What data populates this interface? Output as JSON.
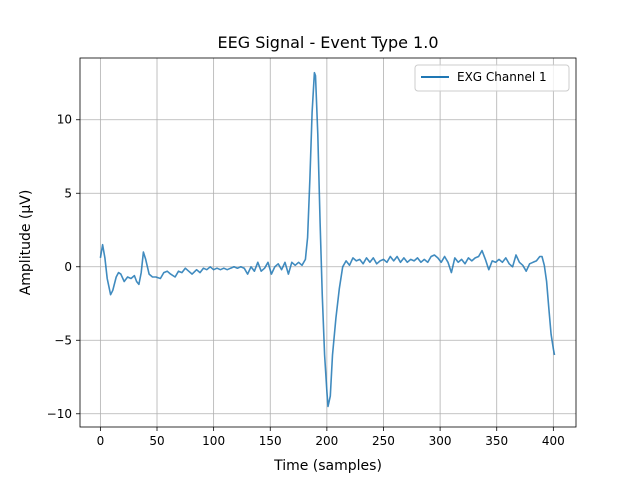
{
  "chart_data": {
    "type": "line",
    "title": "EEG Signal - Event Type 1.0",
    "xlabel": "Time (samples)",
    "ylabel": "Amplitude (µV)",
    "xlim": [
      -18,
      420
    ],
    "ylim": [
      -10.9,
      14.2
    ],
    "xticks": [
      0,
      50,
      100,
      150,
      200,
      250,
      300,
      350,
      400
    ],
    "yticks": [
      -10,
      -5,
      0,
      5,
      10
    ],
    "grid": true,
    "legend": "top-right",
    "series": [
      {
        "name": "EXG Channel 1",
        "color": "#1f77b4",
        "points": [
          [
            0,
            0.6
          ],
          [
            2,
            1.5
          ],
          [
            4,
            0.6
          ],
          [
            6,
            -0.8
          ],
          [
            9,
            -1.9
          ],
          [
            11,
            -1.6
          ],
          [
            14,
            -0.7
          ],
          [
            16,
            -0.4
          ],
          [
            18,
            -0.5
          ],
          [
            21,
            -1.0
          ],
          [
            24,
            -0.7
          ],
          [
            27,
            -0.8
          ],
          [
            30,
            -0.6
          ],
          [
            32,
            -1.0
          ],
          [
            34,
            -1.2
          ],
          [
            36,
            -0.4
          ],
          [
            38,
            1.0
          ],
          [
            40,
            0.5
          ],
          [
            43,
            -0.5
          ],
          [
            46,
            -0.7
          ],
          [
            49,
            -0.7
          ],
          [
            53,
            -0.8
          ],
          [
            56,
            -0.4
          ],
          [
            59,
            -0.3
          ],
          [
            62,
            -0.5
          ],
          [
            66,
            -0.7
          ],
          [
            69,
            -0.3
          ],
          [
            72,
            -0.4
          ],
          [
            75,
            -0.1
          ],
          [
            78,
            -0.3
          ],
          [
            81,
            -0.5
          ],
          [
            85,
            -0.2
          ],
          [
            88,
            -0.4
          ],
          [
            91,
            -0.1
          ],
          [
            94,
            -0.2
          ],
          [
            97,
            0.0
          ],
          [
            100,
            -0.2
          ],
          [
            103,
            -0.1
          ],
          [
            106,
            -0.2
          ],
          [
            109,
            -0.1
          ],
          [
            112,
            -0.2
          ],
          [
            115,
            -0.1
          ],
          [
            118,
            -0.0
          ],
          [
            121,
            -0.1
          ],
          [
            124,
            0.0
          ],
          [
            127,
            -0.1
          ],
          [
            130,
            -0.5
          ],
          [
            133,
            0.0
          ],
          [
            136,
            -0.3
          ],
          [
            139,
            0.3
          ],
          [
            142,
            -0.3
          ],
          [
            145,
            -0.1
          ],
          [
            148,
            0.3
          ],
          [
            151,
            -0.5
          ],
          [
            154,
            0.0
          ],
          [
            157,
            0.2
          ],
          [
            160,
            -0.2
          ],
          [
            163,
            0.3
          ],
          [
            166,
            -0.5
          ],
          [
            169,
            0.3
          ],
          [
            172,
            0.1
          ],
          [
            175,
            0.3
          ],
          [
            178,
            0.1
          ],
          [
            181,
            0.5
          ],
          [
            183,
            2.0
          ],
          [
            185,
            6.0
          ],
          [
            187,
            10.5
          ],
          [
            189,
            13.2
          ],
          [
            190,
            13.0
          ],
          [
            192,
            9.0
          ],
          [
            194,
            3.0
          ],
          [
            196,
            -2.0
          ],
          [
            198,
            -6.0
          ],
          [
            200,
            -8.5
          ],
          [
            201,
            -9.5
          ],
          [
            203,
            -8.8
          ],
          [
            205,
            -6.0
          ],
          [
            208,
            -3.5
          ],
          [
            211,
            -1.5
          ],
          [
            214,
            0.0
          ],
          [
            217,
            0.4
          ],
          [
            220,
            0.1
          ],
          [
            223,
            0.6
          ],
          [
            226,
            0.4
          ],
          [
            229,
            0.5
          ],
          [
            232,
            0.2
          ],
          [
            235,
            0.6
          ],
          [
            238,
            0.3
          ],
          [
            241,
            0.6
          ],
          [
            244,
            0.2
          ],
          [
            247,
            0.4
          ],
          [
            250,
            0.5
          ],
          [
            253,
            0.3
          ],
          [
            256,
            0.7
          ],
          [
            259,
            0.4
          ],
          [
            262,
            0.7
          ],
          [
            265,
            0.3
          ],
          [
            268,
            0.6
          ],
          [
            271,
            0.3
          ],
          [
            274,
            0.5
          ],
          [
            277,
            0.4
          ],
          [
            280,
            0.6
          ],
          [
            283,
            0.3
          ],
          [
            286,
            0.5
          ],
          [
            289,
            0.3
          ],
          [
            292,
            0.7
          ],
          [
            295,
            0.8
          ],
          [
            298,
            0.6
          ],
          [
            301,
            0.3
          ],
          [
            304,
            0.7
          ],
          [
            307,
            0.3
          ],
          [
            310,
            -0.4
          ],
          [
            313,
            0.6
          ],
          [
            316,
            0.3
          ],
          [
            319,
            0.5
          ],
          [
            322,
            0.2
          ],
          [
            325,
            0.6
          ],
          [
            328,
            0.4
          ],
          [
            331,
            0.6
          ],
          [
            334,
            0.7
          ],
          [
            337,
            1.1
          ],
          [
            340,
            0.5
          ],
          [
            343,
            -0.2
          ],
          [
            346,
            0.4
          ],
          [
            349,
            0.3
          ],
          [
            352,
            0.5
          ],
          [
            355,
            0.3
          ],
          [
            358,
            0.6
          ],
          [
            361,
            0.2
          ],
          [
            364,
            0.0
          ],
          [
            367,
            0.8
          ],
          [
            370,
            0.3
          ],
          [
            373,
            0.1
          ],
          [
            376,
            -0.3
          ],
          [
            379,
            0.2
          ],
          [
            382,
            0.3
          ],
          [
            385,
            0.4
          ],
          [
            388,
            0.7
          ],
          [
            390,
            0.7
          ],
          [
            392,
            0.1
          ],
          [
            394,
            -1.0
          ],
          [
            396,
            -2.8
          ],
          [
            398,
            -4.6
          ],
          [
            400,
            -5.6
          ],
          [
            401,
            -6.0
          ]
        ]
      }
    ]
  }
}
